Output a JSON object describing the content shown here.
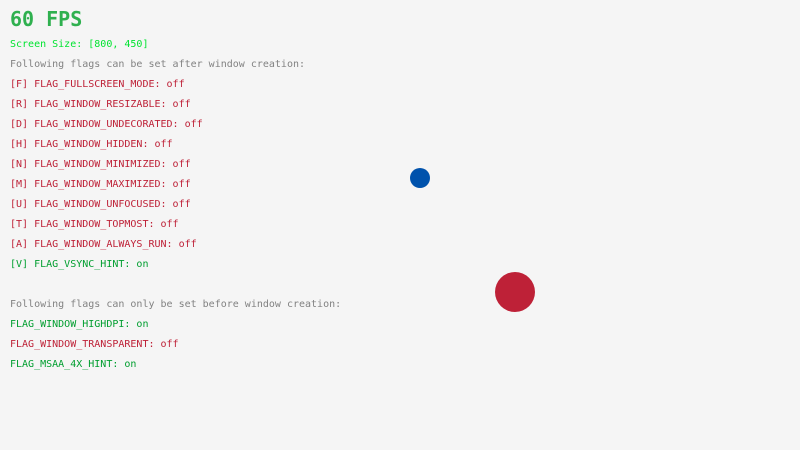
{
  "fps_label": "60 FPS",
  "screen_size_label": "Screen Size: [800, 450]",
  "after_creation_heading": "Following flags can be set after window creation:",
  "after_flags": [
    {
      "text": "[F] FLAG_FULLSCREEN_MODE: off",
      "state": "off"
    },
    {
      "text": "[R] FLAG_WINDOW_RESIZABLE: off",
      "state": "off"
    },
    {
      "text": "[D] FLAG_WINDOW_UNDECORATED: off",
      "state": "off"
    },
    {
      "text": "[H] FLAG_WINDOW_HIDDEN: off",
      "state": "off"
    },
    {
      "text": "[N] FLAG_WINDOW_MINIMIZED: off",
      "state": "off"
    },
    {
      "text": "[M] FLAG_WINDOW_MAXIMIZED: off",
      "state": "off"
    },
    {
      "text": "[U] FLAG_WINDOW_UNFOCUSED: off",
      "state": "off"
    },
    {
      "text": "[T] FLAG_WINDOW_TOPMOST: off",
      "state": "off"
    },
    {
      "text": "[A] FLAG_WINDOW_ALWAYS_RUN: off",
      "state": "off"
    },
    {
      "text": "[V] FLAG_VSYNC_HINT: on",
      "state": "on"
    }
  ],
  "before_creation_heading": "Following flags can only be set before window creation:",
  "before_flags": [
    {
      "text": "FLAG_WINDOW_HIGHDPI: on",
      "state": "on"
    },
    {
      "text": "FLAG_WINDOW_TRANSPARENT: off",
      "state": "off"
    },
    {
      "text": "FLAG_MSAA_4X_HINT: on",
      "state": "on"
    }
  ],
  "colors": {
    "background": "#f5f5f5",
    "on": "#009e2f",
    "off": "#be2137",
    "heading": "#828282",
    "screen_size": "#00e430",
    "fps": "#2fb04f",
    "small_ball": "#0052ac",
    "large_ball": "#be2137"
  }
}
